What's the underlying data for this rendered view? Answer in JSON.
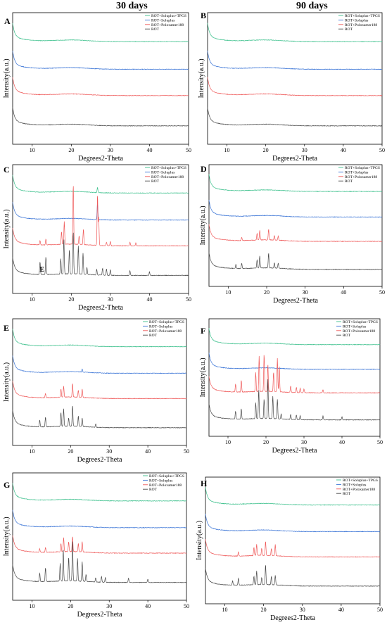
{
  "column_titles": [
    "30 days",
    "90 days"
  ],
  "colors": {
    "tpgs": "#3cc08c",
    "soluplus": "#3a74d6",
    "poloxamer": "#ef5a5a",
    "rot": "#4a4a4a"
  },
  "chart_data": [
    {
      "panel": "A",
      "type": "line",
      "xlabel": "Degrees2-Theta",
      "ylabel": "Intensity(a.u.)",
      "xlim": [
        5,
        50
      ],
      "xticks": [
        10,
        20,
        30,
        40,
        50
      ],
      "series": [
        {
          "name": "ROT+Soluplus+TPGS",
          "peaks": []
        },
        {
          "name": "ROT+Soluplus",
          "peaks": []
        },
        {
          "name": "ROT+Poloxamer188",
          "peaks": []
        },
        {
          "name": "ROT",
          "peaks": []
        }
      ],
      "annotations": []
    },
    {
      "panel": "B",
      "type": "line",
      "xlabel": "Degrees2-Theta",
      "ylabel": "Intensity(a.u.)",
      "xlim": [
        5,
        50
      ],
      "xticks": [
        10,
        20,
        30,
        40,
        50
      ],
      "series": [
        {
          "name": "ROT+Soluplus+TPGS",
          "peaks": []
        },
        {
          "name": "ROT+Soluplus",
          "peaks": []
        },
        {
          "name": "ROT+Poloxamer188",
          "peaks": []
        },
        {
          "name": "ROT",
          "peaks": []
        }
      ],
      "annotations": []
    },
    {
      "panel": "C",
      "type": "line",
      "xlabel": "Degrees2-Theta",
      "ylabel": "Intensity(a.u.)",
      "xlim": [
        5,
        50
      ],
      "xticks": [
        10,
        20,
        30,
        40,
        50
      ],
      "series": [
        {
          "name": "ROT+Soluplus+TPGS",
          "peaks": [
            [
              26.7,
              0.08
            ]
          ]
        },
        {
          "name": "ROT+Soluplus",
          "peaks": [
            [
              26.7,
              0.25
            ]
          ]
        },
        {
          "name": "ROT+Poloxamer188",
          "peaks": [
            [
              12.0,
              0.06
            ],
            [
              13.5,
              0.08
            ],
            [
              17.5,
              0.18
            ],
            [
              18.2,
              0.32
            ],
            [
              20.5,
              0.85
            ],
            [
              22.0,
              0.12
            ],
            [
              23.1,
              0.22
            ],
            [
              26.7,
              0.72
            ],
            [
              27.0,
              0.4
            ],
            [
              29.0,
              0.05
            ],
            [
              30.0,
              0.06
            ],
            [
              35.0,
              0.05
            ],
            [
              36.5,
              0.04
            ]
          ]
        },
        {
          "name": "ROT",
          "peaks": [
            [
              12.0,
              0.18
            ],
            [
              13.5,
              0.25
            ],
            [
              17.3,
              0.22
            ],
            [
              18.1,
              0.5
            ],
            [
              19.5,
              0.34
            ],
            [
              20.5,
              0.6
            ],
            [
              21.8,
              0.4
            ],
            [
              23.0,
              0.3
            ],
            [
              24.0,
              0.1
            ],
            [
              26.5,
              0.08
            ],
            [
              28.0,
              0.1
            ],
            [
              29.0,
              0.09
            ],
            [
              30.0,
              0.08
            ],
            [
              35.0,
              0.07
            ],
            [
              40.0,
              0.05
            ]
          ]
        }
      ],
      "annotations": [
        {
          "text": "E",
          "x": 12.5
        }
      ]
    },
    {
      "panel": "D",
      "type": "line",
      "xlabel": "Degrees2-Theta",
      "ylabel": "Intensity(a.u.)",
      "xlim": [
        5,
        50
      ],
      "xticks": [
        10,
        20,
        30,
        40,
        50
      ],
      "series": [
        {
          "name": "ROT+Soluplus+TPGS",
          "peaks": []
        },
        {
          "name": "ROT+Soluplus",
          "peaks": []
        },
        {
          "name": "ROT+Poloxamer188",
          "peaks": [
            [
              13.5,
              0.05
            ],
            [
              17.5,
              0.1
            ],
            [
              18.2,
              0.14
            ],
            [
              20.5,
              0.16
            ],
            [
              22.0,
              0.07
            ],
            [
              23.0,
              0.06
            ]
          ]
        },
        {
          "name": "ROT",
          "peaks": [
            [
              12.0,
              0.06
            ],
            [
              13.5,
              0.08
            ],
            [
              17.5,
              0.12
            ],
            [
              18.2,
              0.18
            ],
            [
              20.5,
              0.22
            ],
            [
              22.0,
              0.08
            ],
            [
              23.0,
              0.08
            ]
          ]
        }
      ],
      "annotations": []
    },
    {
      "panel": "E",
      "type": "line",
      "xlabel": "Degrees2-Theta",
      "ylabel": "Intensity(a.u.)",
      "xlim": [
        5,
        50
      ],
      "xticks": [
        10,
        20,
        30,
        40,
        50
      ],
      "series": [
        {
          "name": "ROT+Soluplus+TPGS",
          "peaks": []
        },
        {
          "name": "ROT+Soluplus",
          "peaks": [
            [
              23.0,
              0.05
            ]
          ]
        },
        {
          "name": "ROT+Poloxamer188",
          "peaks": [
            [
              13.5,
              0.06
            ],
            [
              17.5,
              0.12
            ],
            [
              18.2,
              0.16
            ],
            [
              20.5,
              0.2
            ],
            [
              22.0,
              0.1
            ],
            [
              23.0,
              0.12
            ]
          ]
        },
        {
          "name": "ROT",
          "peaks": [
            [
              12.0,
              0.1
            ],
            [
              13.5,
              0.14
            ],
            [
              17.5,
              0.2
            ],
            [
              18.2,
              0.25
            ],
            [
              19.5,
              0.12
            ],
            [
              20.5,
              0.3
            ],
            [
              22.0,
              0.15
            ],
            [
              23.0,
              0.12
            ],
            [
              26.5,
              0.05
            ]
          ]
        }
      ],
      "annotations": []
    },
    {
      "panel": "F",
      "type": "line",
      "xlabel": "Degrees2-Theta",
      "ylabel": "Intensity(a.u.)",
      "xlim": [
        5,
        50
      ],
      "xticks": [
        10,
        20,
        30,
        40,
        50
      ],
      "series": [
        {
          "name": "ROT+Soluplus+TPGS",
          "peaks": []
        },
        {
          "name": "ROT+Soluplus",
          "peaks": []
        },
        {
          "name": "ROT+Poloxamer188",
          "peaks": [
            [
              12.0,
              0.12
            ],
            [
              13.5,
              0.18
            ],
            [
              17.3,
              0.3
            ],
            [
              18.2,
              0.55
            ],
            [
              19.5,
              0.58
            ],
            [
              20.5,
              0.42
            ],
            [
              22.0,
              0.3
            ],
            [
              23.0,
              0.52
            ],
            [
              23.5,
              0.4
            ],
            [
              26.5,
              0.1
            ],
            [
              28.0,
              0.08
            ],
            [
              29.0,
              0.07
            ],
            [
              30.0,
              0.06
            ],
            [
              35.0,
              0.05
            ]
          ]
        },
        {
          "name": "ROT",
          "peaks": [
            [
              12.0,
              0.12
            ],
            [
              13.5,
              0.16
            ],
            [
              17.3,
              0.25
            ],
            [
              18.1,
              0.45
            ],
            [
              19.5,
              0.3
            ],
            [
              20.5,
              0.62
            ],
            [
              21.8,
              0.35
            ],
            [
              23.0,
              0.3
            ],
            [
              24.0,
              0.08
            ],
            [
              26.5,
              0.08
            ],
            [
              28.0,
              0.07
            ],
            [
              29.0,
              0.06
            ],
            [
              35.0,
              0.06
            ],
            [
              40.0,
              0.05
            ]
          ]
        }
      ],
      "annotations": []
    },
    {
      "panel": "G",
      "type": "line",
      "xlabel": "Degrees2-Theta",
      "ylabel": "Intensity(a.u.)",
      "xlim": [
        5,
        50
      ],
      "xticks": [
        10,
        20,
        30,
        40,
        50
      ],
      "series": [
        {
          "name": "ROT+Soluplus+TPGS",
          "peaks": []
        },
        {
          "name": "ROT+Soluplus",
          "peaks": []
        },
        {
          "name": "ROT+Poloxamer188",
          "peaks": [
            [
              12.0,
              0.05
            ],
            [
              13.5,
              0.07
            ],
            [
              17.5,
              0.12
            ],
            [
              18.2,
              0.2
            ],
            [
              19.5,
              0.14
            ],
            [
              20.5,
              0.22
            ],
            [
              22.0,
              0.12
            ],
            [
              23.0,
              0.15
            ]
          ]
        },
        {
          "name": "ROT",
          "peaks": [
            [
              12.0,
              0.12
            ],
            [
              13.5,
              0.2
            ],
            [
              17.3,
              0.25
            ],
            [
              18.1,
              0.45
            ],
            [
              19.5,
              0.34
            ],
            [
              20.5,
              0.58
            ],
            [
              21.8,
              0.32
            ],
            [
              23.0,
              0.28
            ],
            [
              24.0,
              0.1
            ],
            [
              26.5,
              0.06
            ],
            [
              28.0,
              0.08
            ],
            [
              29.0,
              0.07
            ],
            [
              35.0,
              0.06
            ],
            [
              40.0,
              0.05
            ]
          ]
        }
      ],
      "annotations": []
    },
    {
      "panel": "H",
      "type": "line",
      "xlabel": "Degrees2-Theta",
      "ylabel": "Intensity(a.u.)",
      "xlim": [
        5,
        50
      ],
      "xticks": [
        10,
        20,
        30,
        40,
        50
      ],
      "series": [
        {
          "name": "ROT+Soluplus+TPGS",
          "peaks": []
        },
        {
          "name": "ROT+Soluplus",
          "peaks": []
        },
        {
          "name": "ROT+Poloxamer188",
          "peaks": [
            [
              13.5,
              0.06
            ],
            [
              17.5,
              0.12
            ],
            [
              18.2,
              0.16
            ],
            [
              19.5,
              0.1
            ],
            [
              20.5,
              0.2
            ],
            [
              22.0,
              0.1
            ],
            [
              23.0,
              0.16
            ]
          ]
        },
        {
          "name": "ROT",
          "peaks": [
            [
              12.0,
              0.06
            ],
            [
              13.5,
              0.1
            ],
            [
              17.5,
              0.12
            ],
            [
              18.2,
              0.2
            ],
            [
              19.5,
              0.1
            ],
            [
              20.5,
              0.28
            ],
            [
              22.0,
              0.12
            ],
            [
              23.0,
              0.14
            ]
          ]
        }
      ],
      "annotations": []
    }
  ]
}
